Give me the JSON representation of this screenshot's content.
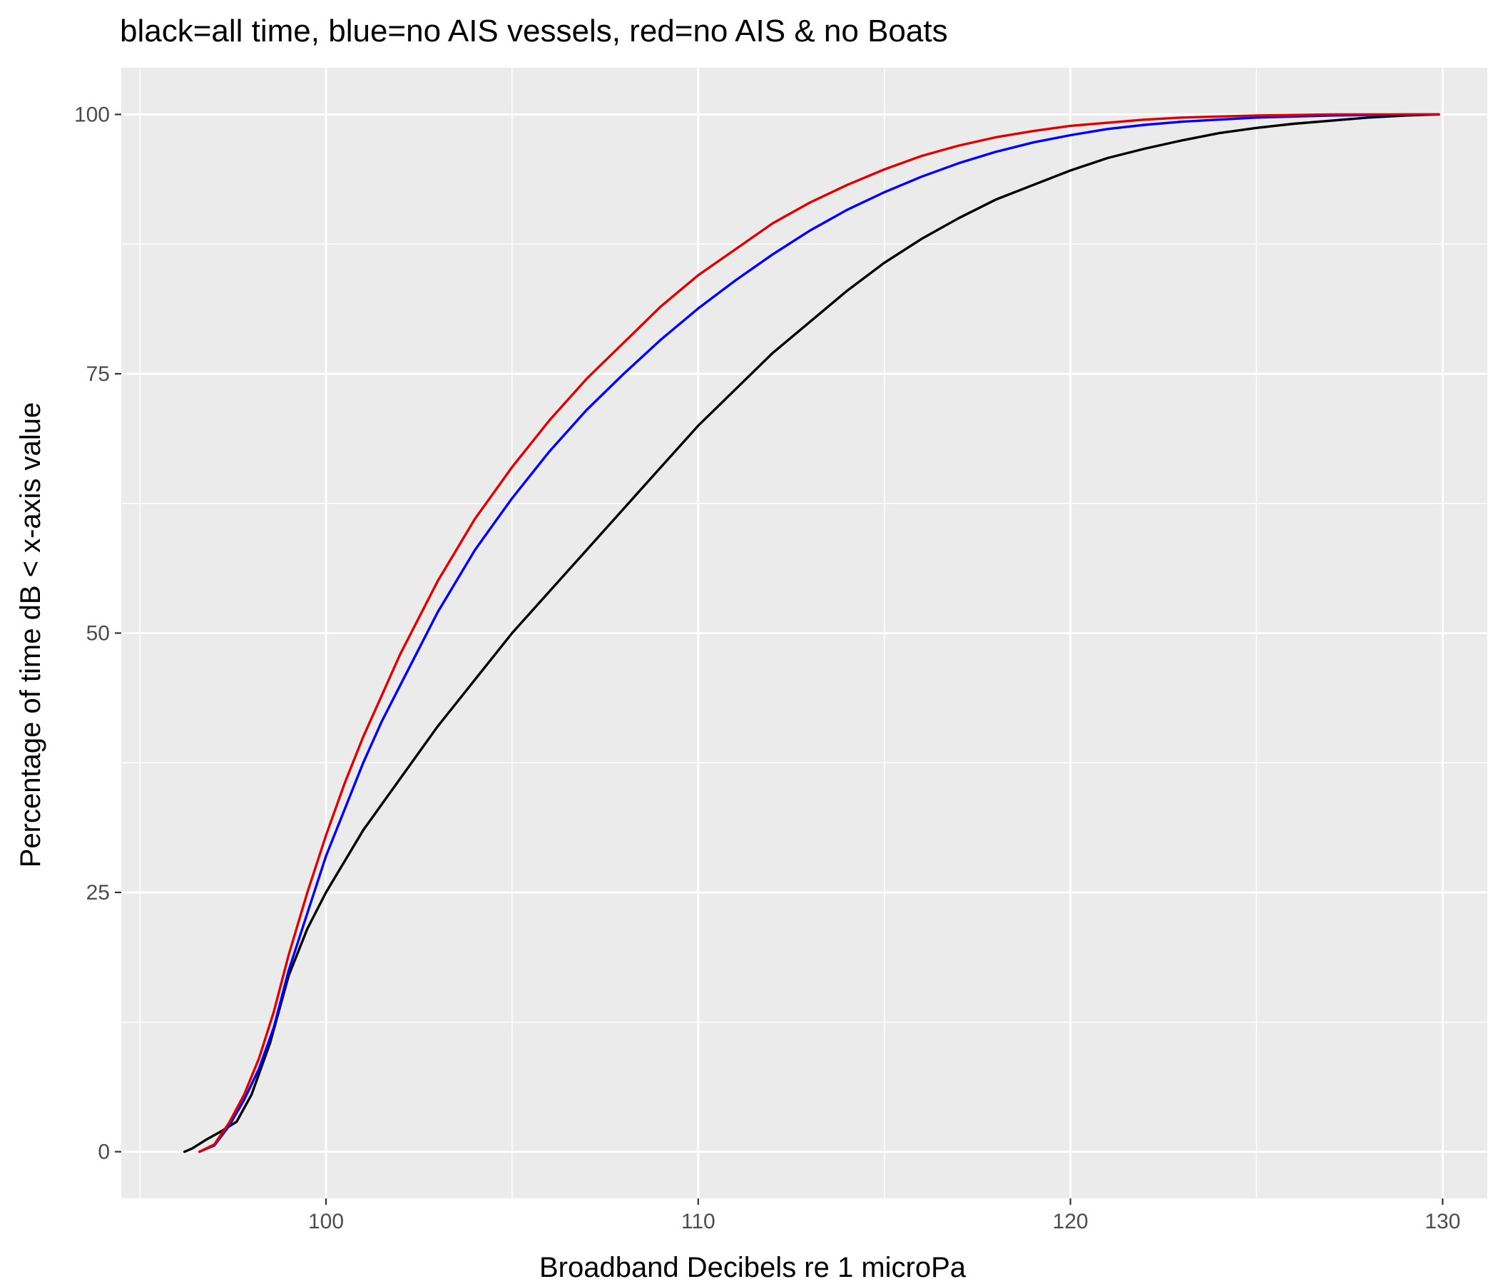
{
  "chart_data": {
    "type": "line",
    "title": "black=all time, blue=no AIS vessels, red=no AIS & no Boats",
    "xlabel": "Broadband Decibels re 1 microPa",
    "ylabel": "Percentage of time dB < x-axis value",
    "xlim": [
      94.5,
      131.2
    ],
    "ylim": [
      -4.5,
      104.5
    ],
    "xticks": [
      100,
      110,
      120,
      130
    ],
    "yticks": [
      0,
      25,
      50,
      75,
      100
    ],
    "grid": true,
    "legend": "none",
    "background": "#EBEBEB",
    "gridColor": "#FFFFFF",
    "series": [
      {
        "color": "#000000",
        "x": [
          96.2,
          96.4,
          96.8,
          97.2,
          97.6,
          98.0,
          98.5,
          99.0,
          99.5,
          100.0,
          100.5,
          101.0,
          101.5,
          102.0,
          103.0,
          104.0,
          105.0,
          106.0,
          107.0,
          108.0,
          109.0,
          110.0,
          111.0,
          112.0,
          113.0,
          114.0,
          115.0,
          116.0,
          117.0,
          118.0,
          119.0,
          120.0,
          121.0,
          122.0,
          123.0,
          124.0,
          125.0,
          126.0,
          127.0,
          128.0,
          129.0,
          129.9
        ],
        "values": [
          0,
          0.3,
          1.2,
          2.0,
          2.9,
          5.5,
          10.5,
          17.0,
          21.5,
          25.0,
          28.0,
          31.0,
          33.5,
          36.0,
          41.0,
          45.5,
          50.0,
          54.0,
          58.0,
          62.0,
          66.0,
          70.0,
          73.5,
          77.0,
          80.0,
          83.0,
          85.7,
          88.0,
          90.0,
          91.8,
          93.2,
          94.6,
          95.8,
          96.7,
          97.5,
          98.2,
          98.7,
          99.1,
          99.4,
          99.7,
          99.9,
          100
        ]
      },
      {
        "color": "#0000FF",
        "x": [
          96.6,
          97.0,
          97.4,
          97.8,
          98.2,
          98.6,
          99.0,
          99.5,
          100.0,
          100.5,
          101.0,
          101.5,
          102.0,
          102.5,
          103.0,
          103.5,
          104.0,
          104.5,
          105.0,
          106.0,
          107.0,
          108.0,
          109.0,
          110.0,
          111.0,
          112.0,
          113.0,
          114.0,
          115.0,
          116.0,
          117.0,
          118.0,
          119.0,
          120.0,
          121.0,
          122.0,
          123.0,
          124.0,
          125.0,
          126.0,
          127.0,
          128.0,
          129.0,
          129.9
        ],
        "values": [
          0,
          0.6,
          2.5,
          5.0,
          8.0,
          12.0,
          17.5,
          23.0,
          28.5,
          33.0,
          37.5,
          41.5,
          45.0,
          48.5,
          52.0,
          55.0,
          58.0,
          60.5,
          63.0,
          67.5,
          71.5,
          75.0,
          78.3,
          81.3,
          84.0,
          86.5,
          88.8,
          90.8,
          92.5,
          94.0,
          95.3,
          96.4,
          97.3,
          98.0,
          98.6,
          99.0,
          99.3,
          99.5,
          99.7,
          99.8,
          99.9,
          99.95,
          100,
          100
        ]
      },
      {
        "color": "#E00000",
        "x": [
          96.6,
          97.0,
          97.4,
          97.8,
          98.2,
          98.6,
          99.0,
          99.5,
          100.0,
          100.5,
          101.0,
          101.5,
          102.0,
          102.5,
          103.0,
          103.5,
          104.0,
          104.5,
          105.0,
          106.0,
          107.0,
          108.0,
          109.0,
          110.0,
          111.0,
          112.0,
          113.0,
          114.0,
          115.0,
          116.0,
          117.0,
          118.0,
          119.0,
          120.0,
          121.0,
          122.0,
          123.0,
          124.0,
          125.0,
          126.0,
          127.0,
          128.0,
          129.0,
          129.9
        ],
        "values": [
          0,
          0.7,
          2.8,
          5.5,
          9.0,
          13.5,
          19.0,
          25.0,
          30.5,
          35.5,
          40.0,
          44.0,
          48.0,
          51.5,
          55.0,
          58.0,
          61.0,
          63.5,
          66.0,
          70.5,
          74.5,
          78.0,
          81.5,
          84.5,
          87.0,
          89.5,
          91.5,
          93.2,
          94.7,
          96.0,
          97.0,
          97.8,
          98.4,
          98.9,
          99.2,
          99.5,
          99.7,
          99.8,
          99.9,
          99.95,
          100,
          100,
          100,
          100
        ]
      }
    ]
  }
}
